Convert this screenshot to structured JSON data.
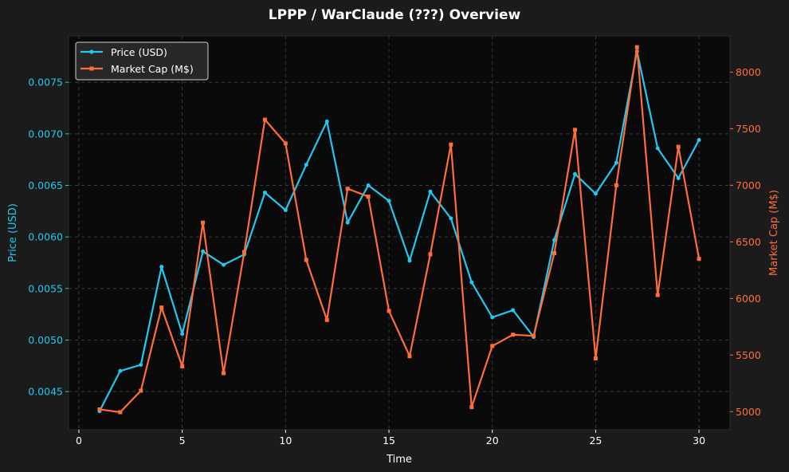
{
  "chart_data": {
    "type": "line",
    "title": "LPPP / WarClaude (???) Overview",
    "xlabel": "Time",
    "ylabel_left": "Price (USD)",
    "ylabel_right": "Market Cap (M$)",
    "xlim": [
      -0.5,
      31.5
    ],
    "ylim_left": [
      0.00413,
      0.00795
    ],
    "ylim_right": [
      4840,
      8320
    ],
    "x_ticks": [
      0,
      5,
      10,
      15,
      20,
      25,
      30
    ],
    "y_ticks_left": [
      0.0045,
      0.005,
      0.0055,
      0.006,
      0.0065,
      0.007,
      0.0075
    ],
    "y_ticks_right": [
      5000,
      5500,
      6000,
      6500,
      7000,
      7500,
      8000
    ],
    "grid": true,
    "legend_position": "top-left",
    "background": "#0a0a0a",
    "page_background": "#1b1b1b",
    "x": [
      1,
      2,
      3,
      4,
      5,
      6,
      7,
      8,
      9,
      10,
      11,
      12,
      13,
      14,
      15,
      16,
      17,
      18,
      19,
      20,
      21,
      22,
      23,
      24,
      25,
      26,
      27,
      28,
      29,
      30
    ],
    "series": [
      {
        "name": "Price (USD)",
        "axis": "left",
        "color": "#22c8ee",
        "marker": "circle",
        "values": [
          0.00431,
          0.0047,
          0.00476,
          0.00571,
          0.00506,
          0.00586,
          0.00573,
          0.00583,
          0.00643,
          0.00626,
          0.0067,
          0.00712,
          0.00614,
          0.0065,
          0.00635,
          0.00577,
          0.00644,
          0.00618,
          0.00556,
          0.00522,
          0.00529,
          0.00503,
          0.00597,
          0.00661,
          0.00642,
          0.00672,
          0.0078,
          0.00686,
          0.00657,
          0.00694
        ]
      },
      {
        "name": "Market Cap (M$)",
        "axis": "right",
        "color": "#ff6e3a",
        "marker": "square",
        "values": [
          5020,
          4995,
          5185,
          5920,
          5400,
          6670,
          5340,
          6410,
          7580,
          7370,
          6340,
          5810,
          6970,
          6900,
          5890,
          5490,
          6390,
          7360,
          5040,
          5580,
          5680,
          5670,
          6400,
          7490,
          5470,
          7000,
          8220,
          6030,
          7340,
          6350
        ]
      }
    ]
  }
}
